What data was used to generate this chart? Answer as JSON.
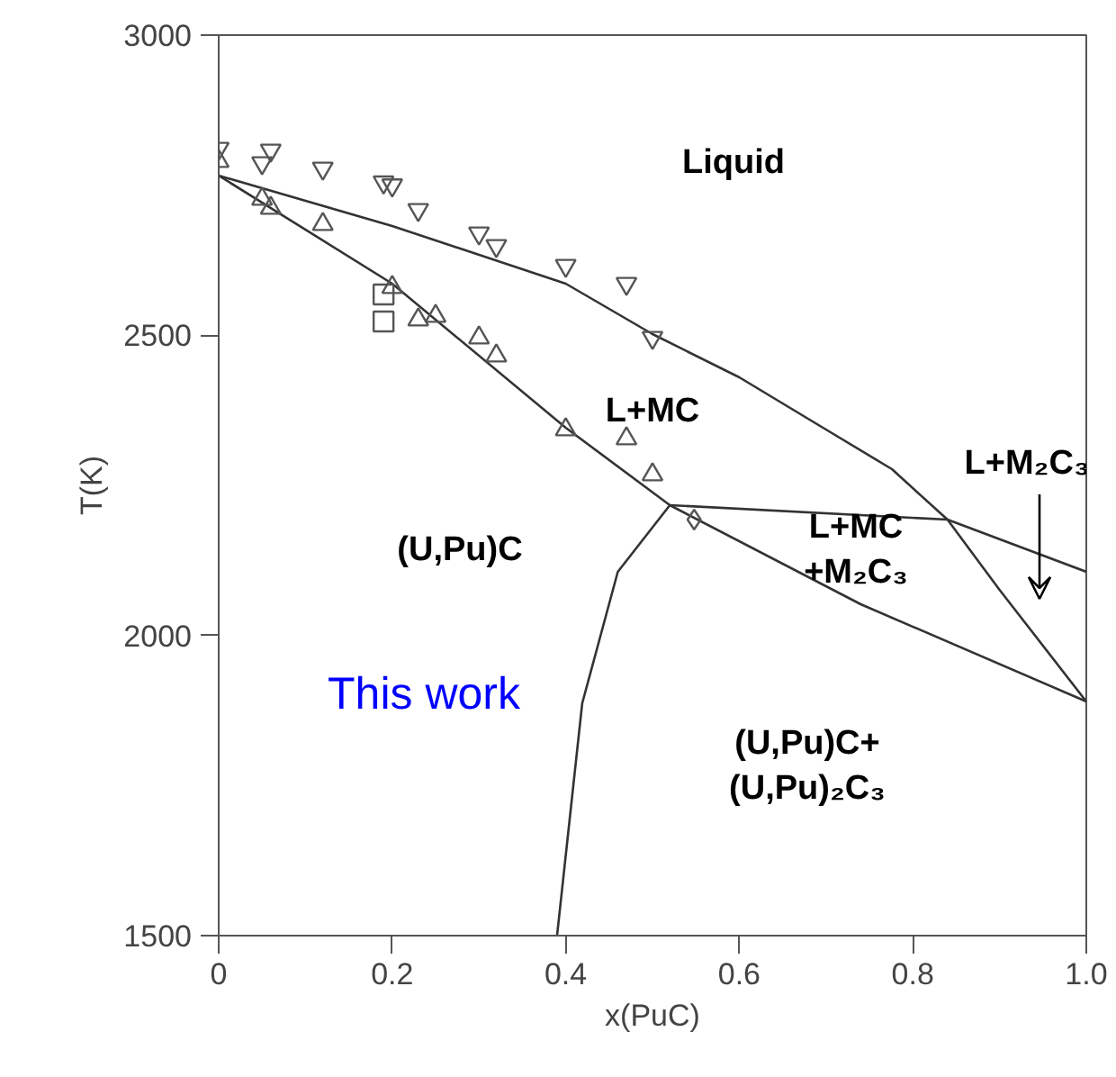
{
  "chart_data": {
    "type": "line",
    "xlabel": "x(PuC)",
    "ylabel": "T(K)",
    "xlim": [
      0,
      1.0
    ],
    "ylim": [
      1500,
      3000
    ],
    "xticks": [
      0,
      0.2,
      0.4,
      0.6,
      0.8,
      {
        "value": 1.0,
        "label": "1.0"
      }
    ],
    "yticks": [
      1500,
      2000,
      2500,
      3000
    ],
    "grid": false,
    "series": [
      {
        "color": "#333333",
        "x": [
          0,
          0.2,
          0.4,
          0.5,
          0.6,
          0.7,
          0.776,
          0.84,
          0.9,
          1.0
        ],
        "values": [
          2766,
          2682,
          2586,
          2502,
          2430,
          2343,
          2277,
          2193,
          2076,
          1890
        ]
      },
      {
        "color": "#333333",
        "x": [
          0,
          0.2,
          0.4,
          0.52,
          0.74,
          1.0
        ],
        "values": [
          2766,
          2586,
          2346,
          2217,
          2052,
          1890
        ]
      },
      {
        "color": "#333333",
        "x": [
          0.52,
          0.84,
          1.0
        ],
        "values": [
          2217,
          2193,
          2106
        ]
      },
      {
        "color": "#333333",
        "x": [
          0.52,
          0.46,
          0.419,
          0.39
        ],
        "values": [
          2217,
          2106,
          1887,
          1500
        ]
      },
      {
        "type": "scatter",
        "marker": "triangle_down",
        "color": "#555555",
        "x": [
          0.0,
          0.05,
          0.06,
          0.12,
          0.19,
          0.2,
          0.23,
          0.3,
          0.32,
          0.4,
          0.47,
          0.5
        ],
        "values": [
          2811,
          2787,
          2808,
          2778,
          2755,
          2750,
          2709,
          2670,
          2649,
          2616,
          2586,
          2496
        ]
      },
      {
        "type": "scatter",
        "marker": "triangle",
        "color": "#555555",
        "x": [
          0.0,
          0.05,
          0.06,
          0.12,
          0.2,
          0.23,
          0.25,
          0.3,
          0.32,
          0.4,
          0.47,
          0.5
        ],
        "values": [
          2790,
          2727,
          2712,
          2685,
          2580,
          2526,
          2532,
          2496,
          2466,
          2343,
          2328,
          2268
        ]
      },
      {
        "type": "scatter",
        "marker": "square",
        "color": "#555555",
        "x": [
          0.19,
          0.19
        ],
        "values": [
          2568,
          2523
        ]
      },
      {
        "type": "scatter",
        "marker": "diamond",
        "color": "#555555",
        "x": [
          0.548
        ],
        "values": [
          2193
        ]
      }
    ],
    "annotations": [
      "Liquid",
      "L+MC",
      "L+M₂C₃",
      "(U,Pu)C",
      "L+MC\n+M₂C₃",
      "This work",
      "(U,Pu)C+\n(U,Pu)₂C₃"
    ]
  }
}
